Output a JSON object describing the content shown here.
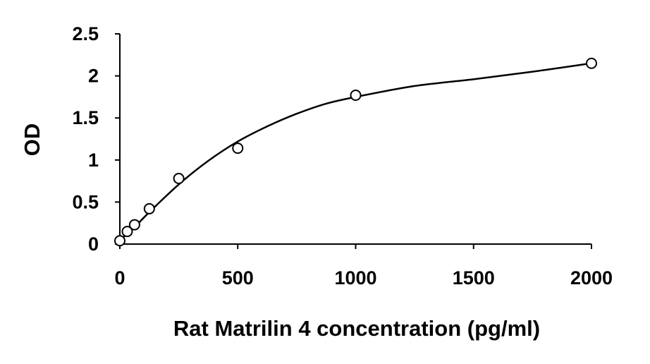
{
  "chart_data": {
    "type": "scatter",
    "title": "",
    "xlabel": "Rat Matrilin 4 concentration (pg/ml)",
    "ylabel": "OD",
    "xlim": [
      0,
      2000
    ],
    "ylim": [
      0,
      2.5
    ],
    "x_ticks": [
      "0",
      "500",
      "1000",
      "1500",
      "2000"
    ],
    "y_ticks": [
      "0",
      "0.5",
      "1",
      "1.5",
      "2",
      "2.5"
    ],
    "grid": false,
    "legend": "none",
    "marker": "open-circle",
    "colors": {
      "axis": "#000000",
      "marker": "#000000",
      "curve": "#000000"
    },
    "series": [
      {
        "points": [
          {
            "x": 0,
            "y": 0.04
          },
          {
            "x": 31.25,
            "y": 0.15
          },
          {
            "x": 62.5,
            "y": 0.23
          },
          {
            "x": 125,
            "y": 0.42
          },
          {
            "x": 250,
            "y": 0.78
          },
          {
            "x": 500,
            "y": 1.14
          },
          {
            "x": 1000,
            "y": 1.77
          },
          {
            "x": 2000,
            "y": 2.15
          }
        ]
      }
    ],
    "fit_curve": {
      "type": "smooth",
      "points": [
        {
          "x": 0,
          "y": 0.05
        },
        {
          "x": 31.25,
          "y": 0.12
        },
        {
          "x": 62.5,
          "y": 0.2
        },
        {
          "x": 125,
          "y": 0.38
        },
        {
          "x": 250,
          "y": 0.71
        },
        {
          "x": 375,
          "y": 0.99
        },
        {
          "x": 500,
          "y": 1.22
        },
        {
          "x": 625,
          "y": 1.4
        },
        {
          "x": 750,
          "y": 1.55
        },
        {
          "x": 875,
          "y": 1.67
        },
        {
          "x": 1000,
          "y": 1.75
        },
        {
          "x": 1250,
          "y": 1.88
        },
        {
          "x": 1500,
          "y": 1.96
        },
        {
          "x": 1750,
          "y": 2.05
        },
        {
          "x": 2000,
          "y": 2.15
        }
      ]
    }
  }
}
